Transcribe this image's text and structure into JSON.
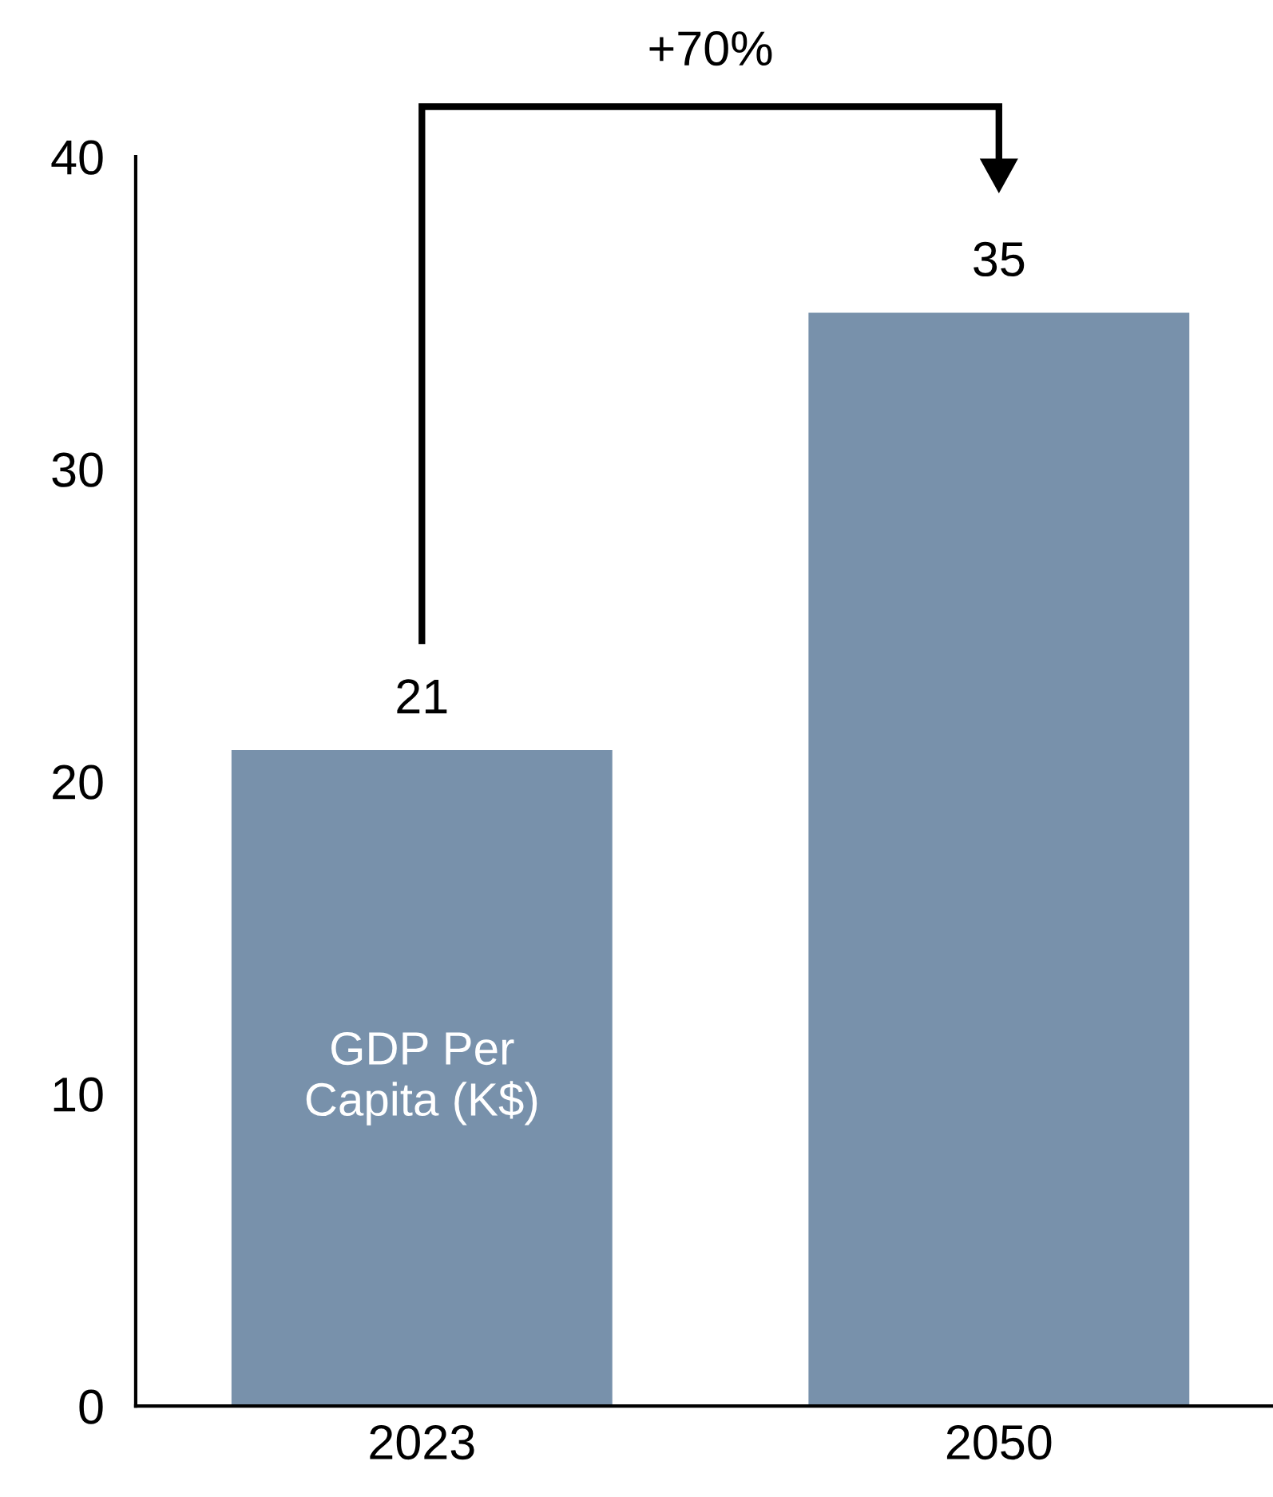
{
  "chart_data": {
    "type": "bar",
    "categories": [
      "2023",
      "2050"
    ],
    "values": [
      21,
      35
    ],
    "color": "#7891ab",
    "ylim": [
      0,
      40
    ],
    "yticks": [
      0,
      10,
      20,
      30,
      40
    ],
    "data_labels": true,
    "grid": false,
    "annotations": [
      "GDP Per Capita (K$)",
      "+70%"
    ]
  }
}
